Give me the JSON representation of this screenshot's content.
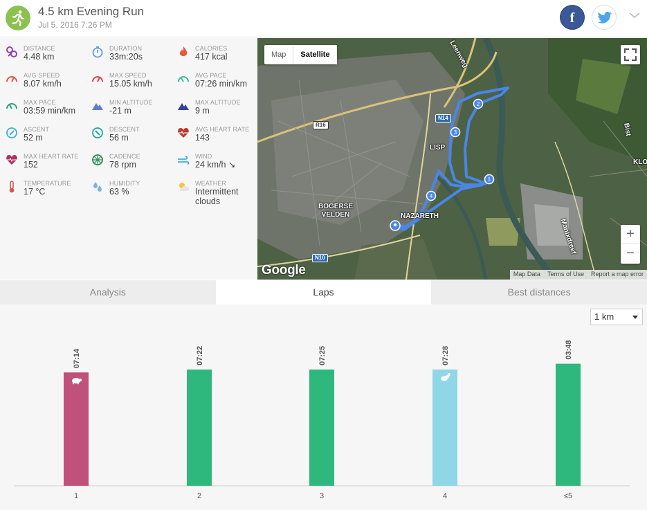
{
  "header": {
    "title": "4.5 km Evening Run",
    "date": "Jul 5, 2016 7:26 PM",
    "facebook_label": "f"
  },
  "stats": [
    {
      "label": "DISTANCE",
      "value": "4.48 km",
      "icon": "distance-icon",
      "color": "#8e44ad"
    },
    {
      "label": "DURATION",
      "value": "33m:20s",
      "icon": "stopwatch-icon",
      "color": "#5d9cec"
    },
    {
      "label": "CALORIES",
      "value": "417 kcal",
      "icon": "flame-icon",
      "color": "#e9573f"
    },
    {
      "label": "AVG SPEED",
      "value": "8.07 km/h",
      "icon": "speedometer-icon",
      "color": "#e9573f"
    },
    {
      "label": "MAX SPEED",
      "value": "15.05 km/h",
      "icon": "speedometer-icon",
      "color": "#da4453"
    },
    {
      "label": "AVG PACE",
      "value": "07:26 min/km",
      "icon": "pace-gauge-icon",
      "color": "#37bc9b"
    },
    {
      "label": "MAX PACE",
      "value": "03:59 min/km",
      "icon": "pace-gauge-icon",
      "color": "#2a9d7c"
    },
    {
      "label": "MIN ALTITUDE",
      "value": "-21 m",
      "icon": "mountain-icon",
      "color": "#5d7fc9"
    },
    {
      "label": "MAX ALTITUDE",
      "value": "9 m",
      "icon": "mountain-icon",
      "color": "#34409e"
    },
    {
      "label": "ASCENT",
      "value": "52 m",
      "icon": "ascent-compass-icon",
      "color": "#3bafda"
    },
    {
      "label": "DESCENT",
      "value": "56 m",
      "icon": "descent-compass-icon",
      "color": "#1fa59a"
    },
    {
      "label": "AVG HEART RATE",
      "value": "143",
      "icon": "heart-rate-icon",
      "color": "#c0392b"
    },
    {
      "label": "MAX HEART RATE",
      "value": "152",
      "icon": "heart-rate-icon",
      "color": "#b03060"
    },
    {
      "label": "CADENCE",
      "value": "78 rpm",
      "icon": "cadence-wheel-icon",
      "color": "#2e8b57"
    },
    {
      "label": "WIND",
      "value": "24 km/h ↘",
      "icon": "wind-icon",
      "color": "#3bafda"
    },
    {
      "label": "TEMPERATURE",
      "value": "17 °C",
      "icon": "thermometer-icon",
      "color": "#d9534f"
    },
    {
      "label": "HUMIDITY",
      "value": "63 %",
      "icon": "humidity-drops-icon",
      "color": "#7fb3e0"
    },
    {
      "label": "WEATHER",
      "value": "Intermittent clouds",
      "icon": "partly-cloudy-icon",
      "color": "#f4c542"
    }
  ],
  "map": {
    "type_buttons": [
      "Map",
      "Satellite"
    ],
    "selected_type": "Satellite",
    "zoom_in": "+",
    "zoom_out": "−",
    "logo": "Google",
    "attribution": [
      "Map Data",
      "Terms of Use",
      "Report a map error"
    ],
    "place_labels": [
      "LISP",
      "NAZARETH",
      "BOGERSE\nVELDEN",
      "Manixdreef",
      "KLO",
      "Bist",
      "Leenweg"
    ],
    "road_shields": [
      "N14",
      "R16",
      "N10"
    ],
    "lap_markers": [
      "1",
      "2",
      "3",
      "4"
    ]
  },
  "tabs": [
    {
      "label": "Analysis",
      "active": false
    },
    {
      "label": "Laps",
      "active": true
    },
    {
      "label": "Best distances",
      "active": false
    }
  ],
  "laps": {
    "split_select": "1 km"
  },
  "chart_data": {
    "type": "bar",
    "title": "",
    "xlabel": "",
    "ylabel": "",
    "categories": [
      "1",
      "2",
      "3",
      "4",
      "≤5"
    ],
    "values": [
      "07:14",
      "07:22",
      "07:25",
      "07:28",
      "03:48"
    ],
    "bar_colors": [
      "#c0517a",
      "#2fb87e",
      "#2fb87e",
      "#8fd6e6",
      "#2fb87e"
    ],
    "bar_fill_fraction": [
      0.78,
      0.8,
      0.8,
      0.8,
      0.84
    ],
    "bar_icons": [
      "turtle-icon",
      "",
      "",
      "rabbit-icon",
      ""
    ],
    "grid": false
  }
}
